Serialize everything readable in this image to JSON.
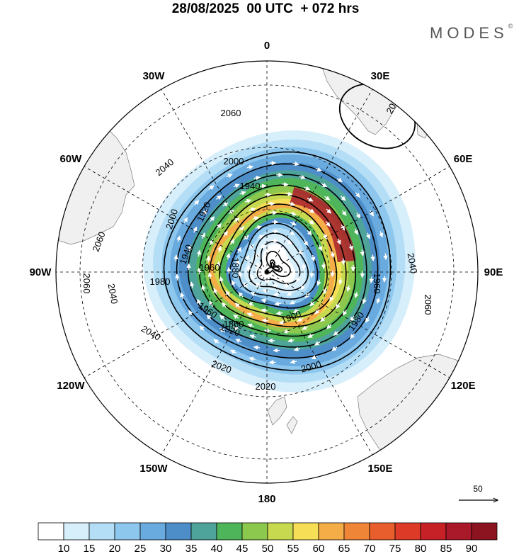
{
  "header": {
    "title": "28/08/2025  00 UTC  + 072 hrs",
    "brand": "MODES",
    "brand_mark": "©"
  },
  "map": {
    "projection": "south-polar-stereographic",
    "longitude_labels": [
      {
        "lon": 0,
        "text": "0"
      },
      {
        "lon": 30,
        "text": "30E"
      },
      {
        "lon": 60,
        "text": "60E"
      },
      {
        "lon": 90,
        "text": "90E"
      },
      {
        "lon": 120,
        "text": "120E"
      },
      {
        "lon": 150,
        "text": "150E"
      },
      {
        "lon": 180,
        "text": "180"
      },
      {
        "lon": -150,
        "text": "150W"
      },
      {
        "lon": -120,
        "text": "120W"
      },
      {
        "lon": -90,
        "text": "90W"
      },
      {
        "lon": -60,
        "text": "60W"
      },
      {
        "lon": -30,
        "text": "30W"
      }
    ],
    "wind_shading": {
      "units": "m/s",
      "jet_max_speed": 90,
      "jet_max_longitude": 50
    },
    "geopotential_contours": {
      "units": "dam",
      "labels": [
        "2080",
        "2060",
        "2060",
        "2060",
        "2060",
        "2040",
        "2040",
        "2040",
        "2040",
        "2020",
        "2020",
        "2000",
        "2000",
        "2000",
        "1980",
        "1980",
        "1960",
        "1960",
        "1960",
        "1940",
        "1940",
        "1920",
        "1920",
        "1900",
        "1880",
        "1860"
      ]
    },
    "reference_vector": {
      "value": "50",
      "units": "m/s"
    }
  },
  "colorbar": {
    "labels": [
      "10",
      "15",
      "20",
      "25",
      "30",
      "35",
      "40",
      "45",
      "50",
      "55",
      "60",
      "65",
      "70",
      "75",
      "80",
      "85",
      "90"
    ],
    "colors": [
      "#ffffff",
      "#d7eefb",
      "#b4def6",
      "#8ec7ee",
      "#69aadf",
      "#4d8ec9",
      "#4ea49a",
      "#4eb55a",
      "#8cc84e",
      "#c7da4f",
      "#f6df57",
      "#f5ad48",
      "#ef8537",
      "#e85e2c",
      "#dd3a27",
      "#c72128",
      "#a9192a",
      "#8b1420"
    ]
  }
}
